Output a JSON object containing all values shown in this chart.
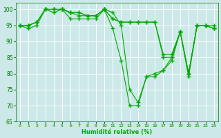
{
  "xlabel": "Humidité relative (%)",
  "background_color": "#cce8e8",
  "line_color": "#00aa00",
  "grid_color": "#aacccc",
  "ylim": [
    65,
    102
  ],
  "xlim": [
    -0.5,
    23.5
  ],
  "yticks": [
    65,
    70,
    75,
    80,
    85,
    90,
    95,
    100
  ],
  "xticks": [
    0,
    1,
    2,
    3,
    4,
    5,
    6,
    7,
    8,
    9,
    10,
    11,
    12,
    13,
    14,
    15,
    16,
    17,
    18,
    19,
    20,
    21,
    22,
    23
  ],
  "series": [
    [
      95,
      94,
      95,
      100,
      99,
      100,
      97,
      97,
      97,
      97,
      100,
      94,
      84,
      70,
      70,
      79,
      79,
      81,
      84,
      93,
      79,
      95,
      95,
      94
    ],
    [
      95,
      95,
      96,
      100,
      100,
      100,
      99,
      98,
      98,
      98,
      100,
      97,
      96,
      96,
      96,
      96,
      96,
      86,
      86,
      93,
      80,
      95,
      95,
      95
    ],
    [
      95,
      95,
      96,
      100,
      100,
      100,
      99,
      99,
      98,
      98,
      100,
      99,
      95,
      75,
      71,
      79,
      80,
      81,
      85,
      93,
      80,
      95,
      95,
      94
    ],
    [
      95,
      95,
      96,
      100,
      100,
      100,
      99,
      99,
      98,
      98,
      100,
      97,
      96,
      96,
      96,
      96,
      96,
      85,
      85,
      93,
      80,
      95,
      95,
      94
    ]
  ]
}
